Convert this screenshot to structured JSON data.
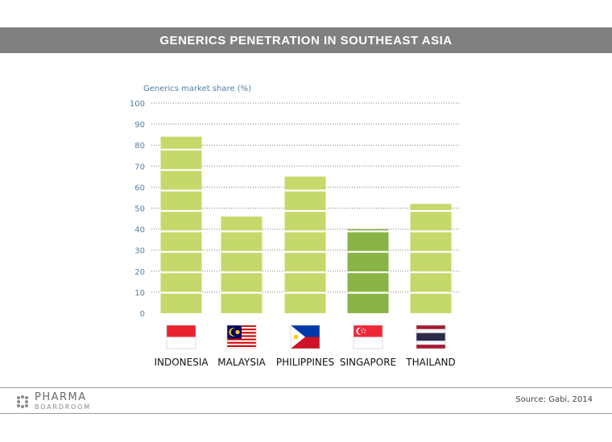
{
  "header": {
    "title": "GENERICS PENETRATION IN SOUTHEAST ASIA"
  },
  "chart_data": {
    "type": "bar",
    "title": "GENERICS PENETRATION IN SOUTHEAST ASIA",
    "ylabel": "Generics market share (%)",
    "xlabel": "",
    "ylim": [
      0,
      100
    ],
    "yticks": [
      0,
      10,
      20,
      30,
      40,
      50,
      60,
      70,
      80,
      90,
      100
    ],
    "grid": true,
    "categories": [
      "INDONESIA",
      "MALAYSIA",
      "PHILIPPINES",
      "SINGAPORE",
      "THAILAND"
    ],
    "values": [
      84,
      46,
      65,
      40,
      52
    ],
    "bar_colors": [
      "#c5d96a",
      "#c5d96a",
      "#c5d96a",
      "#8ab446",
      "#c5d96a"
    ],
    "flags": [
      "indonesia-flag-icon",
      "malaysia-flag-icon",
      "philippines-flag-icon",
      "singapore-flag-icon",
      "thailand-flag-icon"
    ]
  },
  "footer": {
    "logo_top": "PHARMA",
    "logo_bottom": "BOARDROOM",
    "source": "Source: Gabi, 2014"
  }
}
